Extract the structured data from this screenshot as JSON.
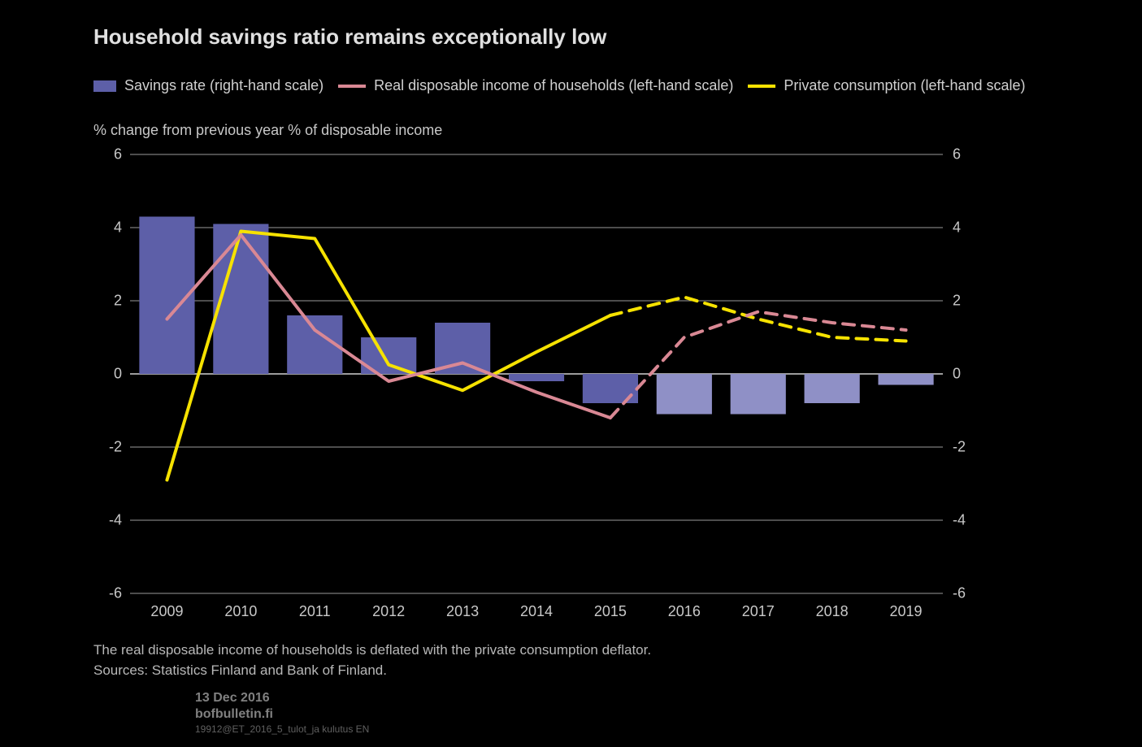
{
  "chart": {
    "title": "Household savings ratio remains exceptionally low",
    "axis_title": "% change from previous year                                                                          % of disposable income",
    "type": "bar+line",
    "background_color": "#000000",
    "text_color": "#d0d0d0",
    "title_fontsize": 26,
    "label_fontsize": 18,
    "legend": [
      {
        "marker": "bar",
        "color": "#5d5fa8",
        "label": "Savings rate (right-hand scale)"
      },
      {
        "marker": "line",
        "color": "#d98894",
        "label": "Real disposable income of households (left-hand scale)"
      },
      {
        "marker": "line",
        "color": "#f6e200",
        "label": "Private consumption (left-hand scale)"
      }
    ],
    "ylim": [
      -6,
      6
    ],
    "yticks": [
      -6,
      -4,
      -2,
      0,
      2,
      4,
      6
    ],
    "xlabels": [
      "2009",
      "2010",
      "2011",
      "2012",
      "2013",
      "2014",
      "2015",
      "2016",
      "2017",
      "2018",
      "2019"
    ],
    "forecast_start_index": 7,
    "bars": {
      "values": [
        4.3,
        4.1,
        1.6,
        1.0,
        1.4,
        -0.2,
        -0.8,
        -1.1,
        -1.1,
        -0.8,
        -0.3
      ],
      "color_actual": "#5d5fa8",
      "color_forecast": "#8f90c6",
      "bar_width": 0.75
    },
    "lines": [
      {
        "name": "private_consumption",
        "color": "#f6e200",
        "width": 4,
        "values": [
          -2.9,
          3.9,
          3.7,
          0.25,
          -0.45,
          0.6,
          1.6,
          2.1,
          1.5,
          1.0,
          0.9
        ]
      },
      {
        "name": "real_disposable_income",
        "color": "#d98894",
        "width": 4,
        "values": [
          1.5,
          3.8,
          1.2,
          -0.2,
          0.3,
          -0.5,
          -1.2,
          1.0,
          1.7,
          1.4,
          1.2
        ]
      }
    ],
    "grid_color_major": "#9a9a9a",
    "grid_color_zero": "#d0d0d0",
    "footnote": "The real disposable income of households is deflated with the private consumption deflator.",
    "source": "Sources: Statistics Finland and Bank of Finland.",
    "meta_date": "13 Dec 2016",
    "meta_site": "bofbulletin.fi",
    "meta_id": "19912@ET_2016_5_tulot_ja kulutus EN"
  }
}
